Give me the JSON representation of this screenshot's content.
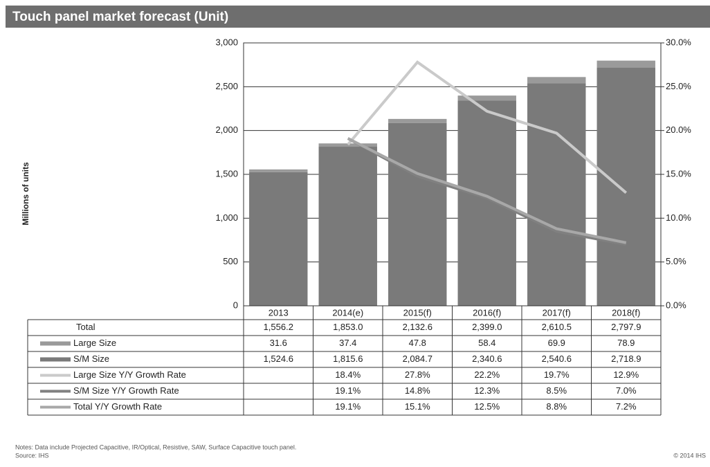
{
  "chart_data": {
    "type": "bar",
    "stacked": true,
    "title": "Touch panel market forecast (Unit)",
    "y_label": "Millions of units",
    "categories": [
      "2013",
      "2014(e)",
      "2015(f)",
      "2016(f)",
      "2017(f)",
      "2018(f)"
    ],
    "ylim": [
      0,
      3000
    ],
    "yticks": [
      0,
      500,
      {
        "value": 1000,
        "label": "1,000"
      },
      {
        "value": 1500,
        "label": "1,500"
      },
      {
        "value": 2000,
        "label": "2,000"
      },
      {
        "value": 2500,
        "label": "2,500"
      },
      {
        "value": 3000,
        "label": "3,000"
      }
    ],
    "y2lim": [
      0,
      30
    ],
    "y2ticks": [
      {
        "value": 0,
        "label": "0.0%"
      },
      {
        "value": 5,
        "label": "5.0%"
      },
      {
        "value": 10,
        "label": "10.0%"
      },
      {
        "value": 15,
        "label": "15.0%"
      },
      {
        "value": 20,
        "label": "20.0%"
      },
      {
        "value": 25,
        "label": "25.0%"
      },
      {
        "value": 30,
        "label": "30.0%"
      }
    ],
    "grid": true,
    "total": {
      "name": "Total",
      "values": [
        1556.2,
        1853.0,
        2132.6,
        2399.0,
        2610.5,
        2797.9
      ],
      "value_labels": [
        "1,556.2",
        "1,853.0",
        "2,132.6",
        "2,399.0",
        "2,610.5",
        "2,797.9"
      ]
    },
    "series": [
      {
        "name": "Large Size",
        "type": "bar",
        "color": "#9a9a9a",
        "values": [
          31.6,
          37.4,
          47.8,
          58.4,
          69.9,
          78.9
        ],
        "value_labels": [
          "31.6",
          "37.4",
          "47.8",
          "58.4",
          "69.9",
          "78.9"
        ]
      },
      {
        "name": "S/M Size",
        "type": "bar",
        "color": "#7a7a7a",
        "values": [
          1524.6,
          1815.6,
          2084.7,
          2340.6,
          2540.6,
          2718.9
        ],
        "value_labels": [
          "1,524.6",
          "1,815.6",
          "2,084.7",
          "2,340.6",
          "2,540.6",
          "2,718.9"
        ]
      },
      {
        "name": "Large Size Y/Y Growth Rate",
        "type": "line",
        "axis": "y2",
        "color": "#cacaca",
        "values": [
          null,
          18.4,
          27.8,
          22.2,
          19.7,
          12.9
        ],
        "value_labels": [
          null,
          "18.4%",
          "27.8%",
          "22.2%",
          "19.7%",
          "12.9%"
        ]
      },
      {
        "name": "S/M Size Y/Y Growth Rate",
        "type": "line",
        "axis": "y2",
        "color": "#808080",
        "values": [
          null,
          19.1,
          14.8,
          12.3,
          8.5,
          7.0
        ],
        "value_labels": [
          null,
          "19.1%",
          "14.8%",
          "12.3%",
          "8.5%",
          "7.0%"
        ]
      },
      {
        "name": "Total Y/Y Growth Rate",
        "type": "line",
        "axis": "y2",
        "color": "#a8a8a8",
        "values": [
          null,
          19.1,
          15.1,
          12.5,
          8.8,
          7.2
        ],
        "value_labels": [
          null,
          "19.1%",
          "15.1%",
          "12.5%",
          "8.8%",
          "7.2%"
        ]
      }
    ],
    "notes": "Notes: Data include Projected Capacitive, IR/Optical, Resistive, SAW, Surface Capacitive touch panel.",
    "source": "Source: IHS",
    "copyright": "© 2014 IHS"
  }
}
